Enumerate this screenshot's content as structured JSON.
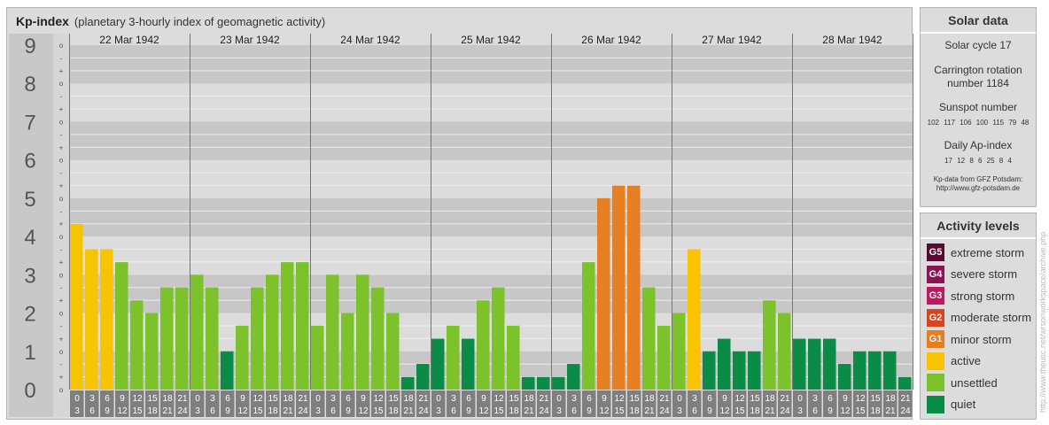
{
  "header": {
    "title": "Kp-index",
    "subtitle": "(planetary 3-hourly index of geomagnetic activity)"
  },
  "chart_data": {
    "type": "bar",
    "title": "Kp-index",
    "subtitle": "(planetary 3-hourly index of geomagnetic activity)",
    "ylim": [
      0,
      9
    ],
    "y_major_ticks": [
      "0",
      "1",
      "2",
      "3",
      "4",
      "5",
      "6",
      "7",
      "8",
      "9"
    ],
    "y_minor_ticks": [
      "+",
      "o",
      "-"
    ],
    "days": [
      "22 Mar 1942",
      "23 Mar 1942",
      "24 Mar 1942",
      "25 Mar 1942",
      "26 Mar 1942",
      "27 Mar 1942",
      "28 Mar 1942"
    ],
    "slot_starts": [
      "0",
      "3",
      "6",
      "9",
      "12",
      "15",
      "18",
      "21"
    ],
    "slot_ends": [
      "3",
      "6",
      "9",
      "12",
      "15",
      "18",
      "21",
      "24"
    ],
    "values": [
      [
        4.33,
        3.67,
        3.67,
        3.33,
        2.33,
        2.0,
        2.67,
        2.67
      ],
      [
        3.0,
        2.67,
        1.0,
        1.67,
        2.67,
        3.0,
        3.33,
        3.33
      ],
      [
        1.67,
        3.0,
        2.0,
        3.0,
        2.67,
        2.0,
        0.33,
        0.67
      ],
      [
        1.33,
        1.67,
        1.33,
        2.33,
        2.67,
        1.67,
        0.33,
        0.33
      ],
      [
        0.33,
        0.67,
        3.33,
        5.0,
        5.33,
        5.33,
        2.67,
        1.67
      ],
      [
        2.0,
        3.67,
        1.0,
        1.33,
        1.0,
        1.0,
        2.33,
        2.0
      ],
      [
        1.33,
        1.33,
        1.33,
        0.67,
        1.0,
        1.0,
        1.0,
        0.33
      ]
    ],
    "legend": "right",
    "grid": true
  },
  "colors": {
    "quiet": "#0a8c46",
    "unsettled": "#7cc22a",
    "active": "#f8c300",
    "g1": "#e67e22",
    "g2": "#d9451f",
    "g3": "#c0185e",
    "g4": "#8a1554",
    "g5": "#5a0a32"
  },
  "solar_data": {
    "heading": "Solar data",
    "solar_cycle": "Solar cycle 17",
    "carrington_line1": "Carrington rotation",
    "carrington_line2": "number 1184",
    "sunspot_label": "Sunspot number",
    "sunspot_values": "102 117 106 100 115 79 48",
    "ap_label": "Daily Ap-index",
    "ap_values": "17 12 8 6 25 8 4",
    "source_line1": "Kp-data from GFZ Potsdam:",
    "source_line2": "http://www.gfz-potsdam.de"
  },
  "activity_levels": {
    "heading": "Activity levels",
    "items": [
      {
        "code": "G5",
        "label": "extreme storm",
        "color": "#5a0a32"
      },
      {
        "code": "G4",
        "label": "severe storm",
        "color": "#8a1554"
      },
      {
        "code": "G3",
        "label": "strong storm",
        "color": "#c0185e"
      },
      {
        "code": "G2",
        "label": "moderate storm",
        "color": "#d9451f"
      },
      {
        "code": "G1",
        "label": "minor storm",
        "color": "#e67e22"
      },
      {
        "code": "",
        "label": "active",
        "color": "#f8c300"
      },
      {
        "code": "",
        "label": "unsettled",
        "color": "#7cc22a"
      },
      {
        "code": "",
        "label": "quiet",
        "color": "#0a8c46"
      }
    ]
  },
  "watermark": "http://www.theusc.net/wrsonworkspace/archive.php"
}
